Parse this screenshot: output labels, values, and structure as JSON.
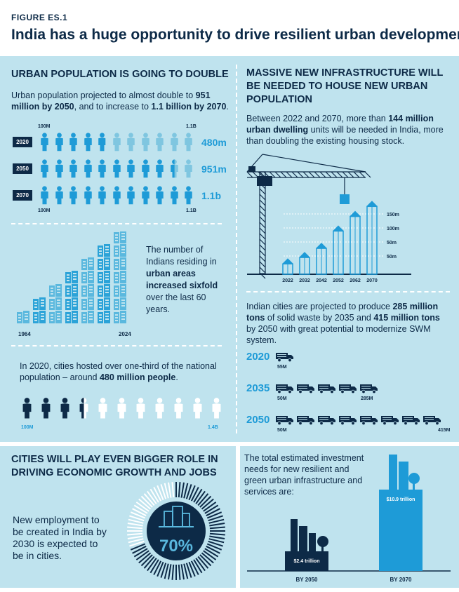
{
  "figure_label": "FIGURE ES.1",
  "figure_title": "India has a huge opportunity to drive resilient urban development",
  "colors": {
    "navy": "#0d2a47",
    "accent": "#1e9bd7",
    "light_person": "#7fc6e0",
    "panel": "#bfe3ee"
  },
  "pop": {
    "heading": "URBAN POPULATION IS GOING TO DOUBLE",
    "intro_pre": "Urban population projected to almost double to ",
    "intro_b1": "951 million by 2050",
    "intro_mid": ", and to increase to ",
    "intro_b2": "1.1 billion by 2070",
    "intro_post": ".",
    "scale_min": "100M",
    "scale_max": "1.1B",
    "rows": [
      {
        "year": "2020",
        "value": "480m",
        "filled": 4.8
      },
      {
        "year": "2050",
        "value": "951m",
        "filled": 9.51
      },
      {
        "year": "2070",
        "value": "1.1b",
        "filled": 11
      }
    ]
  },
  "sixfold": {
    "pre": "The number of Indians residing in ",
    "bold": "urban areas increased sixfold",
    "post": " over the last 60 years.",
    "year_start": "1964",
    "year_end": "2024"
  },
  "third": {
    "pre": "In 2020, cities hosted over one-third of the national population – around ",
    "bold": "480 million people",
    "post": ".",
    "scale_min": "100M",
    "scale_max": "1.4B",
    "filled": 3.5
  },
  "jobs": {
    "heading": "CITIES WILL PLAY EVEN BIGGER ROLE IN DRIVING ECONOMIC GROWTH AND JOBS",
    "text": "New employment to be created in India by 2030 is expected to be in cities.",
    "percent": "70%",
    "fraction": 0.7
  },
  "infra": {
    "heading": "MASSIVE NEW INFRASTRUCTURE WILL BE NEEDED TO HOUSE NEW URBAN POPULATION",
    "text_pre": "Between 2022 and 2070, more than ",
    "text_b": "144 million urban dwelling",
    "text_post": " units will be needed in India, more than doubling the existing housing stock.",
    "years": [
      "2022",
      "2032",
      "2042",
      "2052",
      "2062",
      "2070"
    ],
    "heights": [
      0.16,
      0.23,
      0.33,
      0.52,
      0.68,
      0.79
    ],
    "ticks": [
      "150m",
      "100m",
      "50m",
      "50m"
    ]
  },
  "waste": {
    "text_pre": "Indian cities are projected to produce ",
    "b1": "285 million tons",
    "text_mid": " of solid waste by 2035 and ",
    "b2": "415 million tons",
    "text_post": " by 2050 with great potential to modernize SWM system.",
    "rows": [
      {
        "year": "2020",
        "label_start": "55M",
        "label_end": "",
        "trucks": 1
      },
      {
        "year": "2035",
        "label_start": "50M",
        "label_end": "285M",
        "trucks": 5
      },
      {
        "year": "2050",
        "label_start": "50M",
        "label_end": "415M",
        "trucks": 8
      }
    ]
  },
  "invest": {
    "text": "The total estimated investment needs for new resilient and green urban infrastructure and services are:",
    "bar1_value": "$2.4 trillion",
    "bar1_year": "BY 2050",
    "bar2_value": "$10.9 trillion",
    "bar2_year": "BY 2070"
  }
}
